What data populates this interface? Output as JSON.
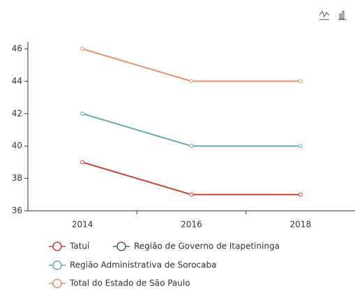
{
  "chart_data": {
    "type": "line",
    "categories": [
      "2014",
      "2016",
      "2018"
    ],
    "series": [
      {
        "name": "Tatuí",
        "color": "#c8423a",
        "values": [
          39,
          37,
          37
        ]
      },
      {
        "name": "Região de Governo de Itapetininga",
        "color": "#4b6072",
        "values": [
          null,
          null,
          null
        ]
      },
      {
        "name": "Região Administrativa de Sorocaba",
        "color": "#6aa9b3",
        "values": [
          42,
          40,
          40
        ]
      },
      {
        "name": "Total do Estado de São Paulo",
        "color": "#e8906a",
        "values": [
          46,
          44,
          44
        ]
      }
    ],
    "ylim": [
      36,
      46
    ],
    "yticks": [
      36,
      38,
      40,
      42,
      44,
      46
    ],
    "grid": false
  }
}
